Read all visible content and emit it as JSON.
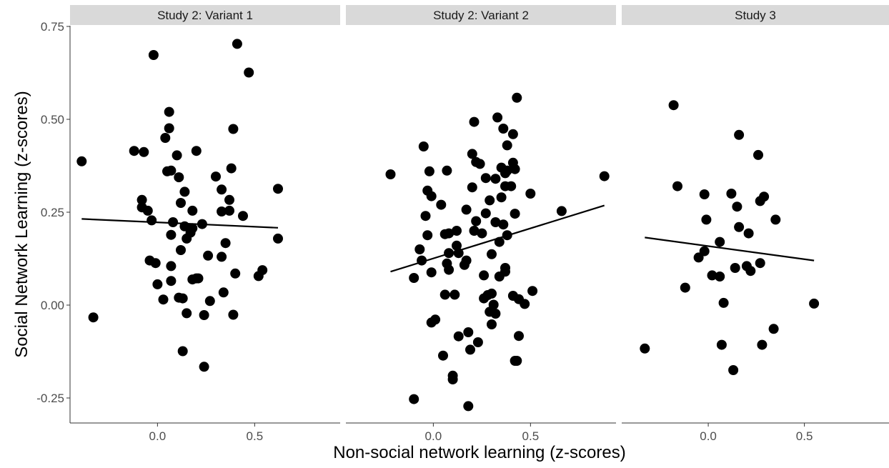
{
  "chart_data": {
    "type": "scatter",
    "xlabel": "Non-social network learning (z-scores)",
    "ylabel": "Social Network Learning (z-scores)",
    "xlim": [
      -0.45,
      0.94
    ],
    "ylim": [
      -0.32,
      0.75
    ],
    "x_ticks": [
      {
        "value": 0.0,
        "label": "0.0"
      },
      {
        "value": 0.5,
        "label": "0.5"
      }
    ],
    "y_ticks": [
      {
        "value": 0.75,
        "label": "0.75"
      },
      {
        "value": 0.5,
        "label": "0.50"
      },
      {
        "value": 0.25,
        "label": "0.25"
      },
      {
        "value": 0.0,
        "label": "0.00"
      },
      {
        "value": -0.25,
        "label": "-0.25"
      }
    ],
    "grid": false,
    "panels": [
      {
        "title": "Study 2: Variant 1",
        "points": [
          [
            -0.39,
            0.387
          ],
          [
            -0.33,
            -0.033
          ],
          [
            -0.12,
            0.415
          ],
          [
            -0.07,
            0.412
          ],
          [
            -0.08,
            0.263
          ],
          [
            -0.08,
            0.283
          ],
          [
            -0.05,
            0.254
          ],
          [
            -0.03,
            0.228
          ],
          [
            -0.04,
            0.12
          ],
          [
            -0.02,
            0.673
          ],
          [
            -0.01,
            0.113
          ],
          [
            0.0,
            0.056
          ],
          [
            0.03,
            0.015
          ],
          [
            0.04,
            0.45
          ],
          [
            0.06,
            0.476
          ],
          [
            0.06,
            0.52
          ],
          [
            0.05,
            0.36
          ],
          [
            0.07,
            0.362
          ],
          [
            0.07,
            0.189
          ],
          [
            0.07,
            0.105
          ],
          [
            0.07,
            0.065
          ],
          [
            0.08,
            0.223
          ],
          [
            0.1,
            0.403
          ],
          [
            0.11,
            0.344
          ],
          [
            0.11,
            0.02
          ],
          [
            0.12,
            0.275
          ],
          [
            0.12,
            0.148
          ],
          [
            0.13,
            0.018
          ],
          [
            0.13,
            -0.124
          ],
          [
            0.14,
            0.305
          ],
          [
            0.14,
            0.212
          ],
          [
            0.15,
            0.179
          ],
          [
            0.15,
            -0.022
          ],
          [
            0.17,
            0.195
          ],
          [
            0.18,
            0.207
          ],
          [
            0.18,
            0.254
          ],
          [
            0.18,
            0.069
          ],
          [
            0.2,
            0.415
          ],
          [
            0.2,
            0.072
          ],
          [
            0.21,
            0.072
          ],
          [
            0.23,
            0.218
          ],
          [
            0.24,
            -0.027
          ],
          [
            0.24,
            -0.166
          ],
          [
            0.26,
            0.133
          ],
          [
            0.27,
            0.011
          ],
          [
            0.3,
            0.346
          ],
          [
            0.33,
            0.311
          ],
          [
            0.33,
            0.252
          ],
          [
            0.33,
            0.13
          ],
          [
            0.34,
            0.034
          ],
          [
            0.35,
            0.167
          ],
          [
            0.37,
            0.283
          ],
          [
            0.37,
            0.254
          ],
          [
            0.38,
            0.368
          ],
          [
            0.39,
            0.474
          ],
          [
            0.4,
            0.085
          ],
          [
            0.39,
            -0.026
          ],
          [
            0.41,
            0.703
          ],
          [
            0.44,
            0.24
          ],
          [
            0.47,
            0.626
          ],
          [
            0.52,
            0.078
          ],
          [
            0.54,
            0.094
          ],
          [
            0.62,
            0.313
          ],
          [
            0.62,
            0.179
          ]
        ],
        "trend": [
          [
            -0.39,
            0.232
          ],
          [
            0.62,
            0.208
          ]
        ]
      },
      {
        "title": "Study 2: Variant 2",
        "points": [
          [
            -0.22,
            0.352
          ],
          [
            -0.1,
            0.073
          ],
          [
            -0.1,
            -0.253
          ],
          [
            -0.07,
            0.15
          ],
          [
            -0.06,
            0.12
          ],
          [
            -0.05,
            0.427
          ],
          [
            -0.04,
            0.24
          ],
          [
            -0.03,
            0.308
          ],
          [
            -0.03,
            0.188
          ],
          [
            -0.02,
            0.36
          ],
          [
            -0.01,
            0.293
          ],
          [
            -0.01,
            0.088
          ],
          [
            -0.01,
            -0.047
          ],
          [
            0.01,
            -0.039
          ],
          [
            0.04,
            0.27
          ],
          [
            0.05,
            -0.136
          ],
          [
            0.07,
            0.362
          ],
          [
            0.06,
            0.191
          ],
          [
            0.06,
            0.028
          ],
          [
            0.07,
            0.112
          ],
          [
            0.08,
            0.193
          ],
          [
            0.08,
            0.095
          ],
          [
            0.08,
            0.14
          ],
          [
            0.1,
            -0.19
          ],
          [
            0.1,
            -0.2
          ],
          [
            0.11,
            0.028
          ],
          [
            0.12,
            0.2
          ],
          [
            0.12,
            0.16
          ],
          [
            0.13,
            0.14
          ],
          [
            0.13,
            -0.084
          ],
          [
            0.16,
            0.108
          ],
          [
            0.17,
            0.12
          ],
          [
            0.17,
            0.257
          ],
          [
            0.18,
            -0.272
          ],
          [
            0.18,
            -0.073
          ],
          [
            0.19,
            -0.12
          ],
          [
            0.2,
            0.317
          ],
          [
            0.2,
            0.407
          ],
          [
            0.21,
            0.2
          ],
          [
            0.22,
            0.226
          ],
          [
            0.21,
            0.493
          ],
          [
            0.22,
            0.385
          ],
          [
            0.23,
            -0.1
          ],
          [
            0.24,
            0.38
          ],
          [
            0.25,
            0.193
          ],
          [
            0.26,
            0.08
          ],
          [
            0.26,
            0.018
          ],
          [
            0.27,
            0.247
          ],
          [
            0.27,
            0.342
          ],
          [
            0.28,
            0.027
          ],
          [
            0.29,
            0.282
          ],
          [
            0.29,
            -0.018
          ],
          [
            0.3,
            0.031
          ],
          [
            0.3,
            0.137
          ],
          [
            0.3,
            -0.052
          ],
          [
            0.31,
            0.001
          ],
          [
            0.32,
            0.34
          ],
          [
            0.32,
            0.223
          ],
          [
            0.32,
            -0.023
          ],
          [
            0.33,
            0.505
          ],
          [
            0.34,
            0.17
          ],
          [
            0.34,
            0.077
          ],
          [
            0.35,
            0.37
          ],
          [
            0.35,
            0.29
          ],
          [
            0.36,
            0.475
          ],
          [
            0.36,
            0.217
          ],
          [
            0.37,
            0.09
          ],
          [
            0.37,
            0.1
          ],
          [
            0.37,
            0.32
          ],
          [
            0.37,
            0.355
          ],
          [
            0.38,
            0.43
          ],
          [
            0.38,
            0.362
          ],
          [
            0.38,
            0.188
          ],
          [
            0.4,
            0.32
          ],
          [
            0.41,
            0.46
          ],
          [
            0.41,
            0.383
          ],
          [
            0.42,
            0.246
          ],
          [
            0.41,
            0.025
          ],
          [
            0.42,
            -0.15
          ],
          [
            0.42,
            0.366
          ],
          [
            0.43,
            -0.15
          ],
          [
            0.43,
            0.558
          ],
          [
            0.44,
            0.016
          ],
          [
            0.44,
            -0.083
          ],
          [
            0.47,
            0.003
          ],
          [
            0.5,
            0.3
          ],
          [
            0.51,
            0.038
          ],
          [
            0.66,
            0.253
          ],
          [
            0.88,
            0.347
          ]
        ],
        "trend": [
          [
            -0.22,
            0.09
          ],
          [
            0.88,
            0.268
          ]
        ]
      },
      {
        "title": "Study 3",
        "points": [
          [
            -0.33,
            -0.117
          ],
          [
            -0.18,
            0.538
          ],
          [
            -0.16,
            0.32
          ],
          [
            -0.12,
            0.047
          ],
          [
            -0.05,
            0.128
          ],
          [
            -0.02,
            0.145
          ],
          [
            -0.02,
            0.298
          ],
          [
            -0.01,
            0.23
          ],
          [
            0.02,
            0.08
          ],
          [
            0.06,
            0.077
          ],
          [
            0.06,
            0.17
          ],
          [
            0.07,
            -0.107
          ],
          [
            0.08,
            0.006
          ],
          [
            0.12,
            0.3
          ],
          [
            0.13,
            -0.175
          ],
          [
            0.14,
            0.1
          ],
          [
            0.15,
            0.265
          ],
          [
            0.16,
            0.458
          ],
          [
            0.16,
            0.21
          ],
          [
            0.2,
            0.105
          ],
          [
            0.21,
            0.193
          ],
          [
            0.22,
            0.092
          ],
          [
            0.26,
            0.404
          ],
          [
            0.27,
            0.113
          ],
          [
            0.27,
            0.28
          ],
          [
            0.28,
            -0.107
          ],
          [
            0.29,
            0.292
          ],
          [
            0.34,
            -0.064
          ],
          [
            0.35,
            0.23
          ],
          [
            0.55,
            0.004
          ]
        ],
        "trend": [
          [
            -0.33,
            0.182
          ],
          [
            0.55,
            0.12
          ]
        ]
      }
    ]
  }
}
